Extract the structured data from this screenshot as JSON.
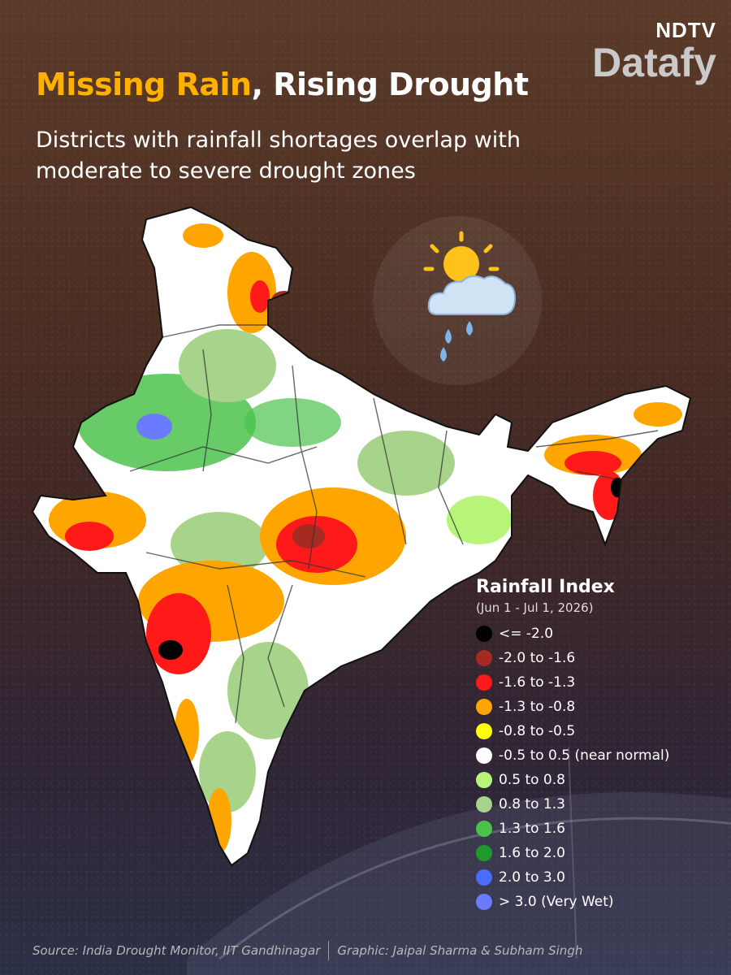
{
  "brand": {
    "top": "NDTV",
    "main": "Datafy"
  },
  "title": {
    "highlight": "Missing Rain",
    "rest": ", Rising Drought"
  },
  "subtitle": "Districts with rainfall shortages overlap with moderate to severe drought zones",
  "legend": {
    "title": "Rainfall Index",
    "period": "(Jun 1 - Jul 1, 2026)",
    "items": [
      {
        "label": "<= -2.0",
        "color": "#000000"
      },
      {
        "label": "-2.0 to -1.6",
        "color": "#a52a22"
      },
      {
        "label": "-1.6 to -1.3",
        "color": "#ff1a1a"
      },
      {
        "label": "-1.3 to -0.8",
        "color": "#ffa500"
      },
      {
        "label": "-0.8 to -0.5",
        "color": "#ffff00"
      },
      {
        "label": "-0.5 to 0.5 (near normal)",
        "color": "#ffffff"
      },
      {
        "label": "0.5 to 0.8",
        "color": "#b6f57a"
      },
      {
        "label": "0.8 to 1.3",
        "color": "#a8d38a"
      },
      {
        "label": "1.3 to 1.6",
        "color": "#4cc24c"
      },
      {
        "label": "1.6 to 2.0",
        "color": "#1f9a2a"
      },
      {
        "label": "2.0 to 3.0",
        "color": "#4a6cff"
      },
      {
        "label": "> 3.0 (Very Wet)",
        "color": "#6a7bff"
      }
    ]
  },
  "footer": {
    "source": "Source:  India Drought Monitor, IIT Gandhinagar",
    "credit": "Graphic: Jaipal Sharma & Subham Singh"
  }
}
